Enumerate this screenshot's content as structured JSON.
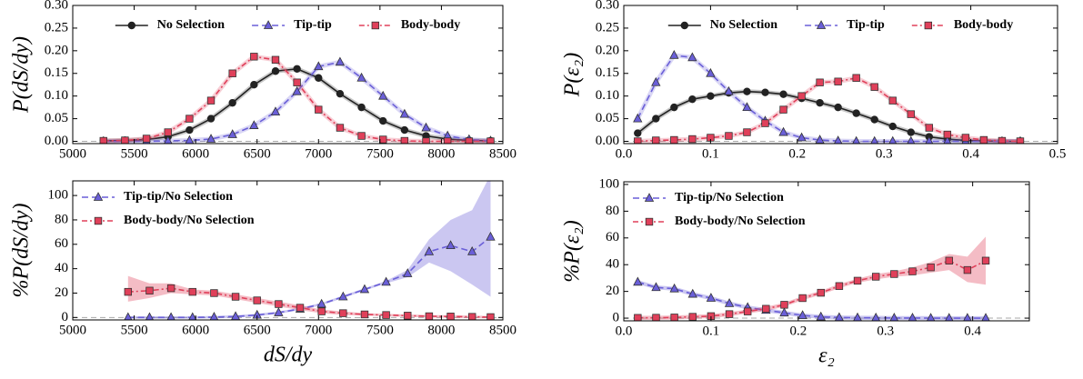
{
  "chart_data": [
    {
      "type": "line",
      "ylabel": "P(dS/dy)",
      "x": [
        5250,
        5425,
        5600,
        5775,
        5950,
        6125,
        6300,
        6475,
        6650,
        6825,
        7000,
        7175,
        7350,
        7525,
        7700,
        7875,
        8050,
        8225,
        8400
      ],
      "series": [
        {
          "name": "No Selection",
          "color": "#222222",
          "marker": "circle",
          "linestyle": "solid",
          "values": [
            0.001,
            0.002,
            0.004,
            0.01,
            0.025,
            0.05,
            0.085,
            0.125,
            0.155,
            0.16,
            0.14,
            0.105,
            0.075,
            0.045,
            0.025,
            0.012,
            0.005,
            0.002,
            0.001
          ]
        },
        {
          "name": "Tip-tip",
          "color": "#6a5fd8",
          "marker": "triangle",
          "linestyle": "dashed",
          "values": [
            0,
            0,
            0,
            0.001,
            0.002,
            0.005,
            0.015,
            0.035,
            0.065,
            0.11,
            0.165,
            0.175,
            0.14,
            0.1,
            0.06,
            0.03,
            0.012,
            0.004,
            0.001
          ]
        },
        {
          "name": "Body-body",
          "color": "#e0405a",
          "marker": "square",
          "linestyle": "dashdot",
          "values": [
            0.001,
            0.002,
            0.006,
            0.02,
            0.05,
            0.09,
            0.15,
            0.187,
            0.18,
            0.13,
            0.07,
            0.03,
            0.012,
            0.004,
            0.001,
            0,
            0,
            0,
            0
          ]
        }
      ],
      "xlim": [
        5000,
        8500
      ],
      "ylim": [
        -0.005,
        0.3
      ],
      "xticks": [
        5000,
        5500,
        6000,
        6500,
        7000,
        7500,
        8000,
        8500
      ],
      "yticks": [
        {
          "value": 0,
          "label": "0.00"
        },
        {
          "value": 0.05,
          "label": "0.05"
        },
        {
          "value": 0.1,
          "label": "0.10"
        },
        {
          "value": 0.15,
          "label": "0.15"
        },
        {
          "value": 0.2,
          "label": "0.20"
        },
        {
          "value": 0.25,
          "label": "0.25"
        },
        {
          "value": 0.3,
          "label": "0.30"
        }
      ],
      "hline": 0,
      "legend": "upper center"
    },
    {
      "type": "line",
      "ylabel": "%P(dS/dy)",
      "xlabel": "dS/dy",
      "x": [
        5450,
        5625,
        5800,
        5975,
        6150,
        6325,
        6500,
        6675,
        6850,
        7025,
        7200,
        7375,
        7550,
        7725,
        7900,
        8075,
        8250,
        8400
      ],
      "series": [
        {
          "name": "Tip-tip/No Selection",
          "color": "#6a5fd8",
          "marker": "triangle",
          "linestyle": "dashed",
          "values": [
            0,
            0,
            0,
            0,
            0.3,
            0.8,
            2,
            4,
            7,
            11,
            17,
            23,
            29,
            36,
            54,
            59,
            54,
            66
          ],
          "lower": [
            -1,
            -1,
            -1,
            -1,
            -0.7,
            -0.2,
            1,
            3,
            6,
            10,
            16,
            22,
            28,
            33,
            45,
            38,
            27,
            17
          ],
          "upper": [
            1,
            1,
            1,
            1,
            1.3,
            1.8,
            3,
            5,
            8,
            12,
            18,
            24,
            30,
            39,
            64,
            80,
            88,
            117
          ]
        },
        {
          "name": "Body-body/No Selection",
          "color": "#e0405a",
          "marker": "square",
          "linestyle": "dashdot",
          "values": [
            21,
            22,
            24,
            21,
            20,
            17,
            14,
            11,
            8,
            5,
            3.5,
            2.5,
            2,
            1.5,
            1,
            0.8,
            0.5,
            0.3
          ],
          "lower": [
            13,
            16,
            20,
            19,
            18,
            15,
            12,
            9,
            6,
            3.5,
            2,
            1.5,
            1,
            0.5,
            0,
            -0.2,
            -0.5,
            -0.7
          ],
          "upper": [
            34,
            28,
            28,
            23,
            22,
            19,
            16,
            13,
            10,
            6.5,
            5,
            3.5,
            3,
            2.5,
            2,
            1.8,
            1.5,
            1.3
          ]
        }
      ],
      "xlim": [
        5000,
        8500
      ],
      "ylim": [
        -2,
        112
      ],
      "xticks": [
        5000,
        5500,
        6000,
        6500,
        7000,
        7500,
        8000,
        8500
      ],
      "yticks": [
        0,
        20,
        40,
        60,
        80,
        100
      ],
      "hline": 0,
      "legend": "upper left"
    },
    {
      "type": "line",
      "ylabel": "P(ε₂)",
      "x": [
        0.016,
        0.037,
        0.058,
        0.079,
        0.1,
        0.121,
        0.142,
        0.163,
        0.184,
        0.205,
        0.226,
        0.247,
        0.268,
        0.289,
        0.31,
        0.331,
        0.352,
        0.373,
        0.394,
        0.415,
        0.436,
        0.457
      ],
      "series": [
        {
          "name": "No Selection",
          "color": "#222222",
          "marker": "circle",
          "linestyle": "solid",
          "values": [
            0.018,
            0.05,
            0.075,
            0.093,
            0.1,
            0.107,
            0.11,
            0.108,
            0.104,
            0.095,
            0.085,
            0.075,
            0.062,
            0.048,
            0.033,
            0.02,
            0.01,
            0.005,
            0.002,
            0.001,
            0,
            0
          ]
        },
        {
          "name": "Tip-tip",
          "color": "#6a5fd8",
          "marker": "triangle",
          "linestyle": "dashed",
          "values": [
            0.05,
            0.13,
            0.19,
            0.185,
            0.15,
            0.11,
            0.075,
            0.045,
            0.02,
            0.008,
            0.003,
            0.001,
            0,
            0,
            0,
            0,
            0,
            0,
            0,
            0,
            0,
            0
          ]
        },
        {
          "name": "Body-body",
          "color": "#e0405a",
          "marker": "square",
          "linestyle": "dashdot",
          "values": [
            0,
            0.002,
            0.003,
            0.005,
            0.008,
            0.012,
            0.02,
            0.04,
            0.07,
            0.1,
            0.13,
            0.132,
            0.14,
            0.12,
            0.09,
            0.06,
            0.03,
            0.015,
            0.008,
            0.003,
            0.001,
            0
          ]
        }
      ],
      "xlim": [
        0,
        0.5
      ],
      "ylim": [
        -0.005,
        0.3
      ],
      "xticks": [
        {
          "value": 0,
          "label": "0.0"
        },
        0.1,
        0.2,
        0.3,
        0.4,
        0.5
      ],
      "yticks": [
        {
          "value": 0,
          "label": "0.00"
        },
        {
          "value": 0.05,
          "label": "0.05"
        },
        {
          "value": 0.1,
          "label": "0.10"
        },
        {
          "value": 0.15,
          "label": "0.15"
        },
        {
          "value": 0.2,
          "label": "0.20"
        },
        {
          "value": 0.25,
          "label": "0.25"
        },
        {
          "value": 0.3,
          "label": "0.30"
        }
      ],
      "hline": 0,
      "legend": "upper center"
    },
    {
      "type": "line",
      "ylabel": "%P(ε₂)",
      "xlabel": "ε₂",
      "x": [
        0.016,
        0.037,
        0.058,
        0.079,
        0.1,
        0.121,
        0.142,
        0.163,
        0.184,
        0.205,
        0.226,
        0.247,
        0.268,
        0.289,
        0.31,
        0.331,
        0.352,
        0.373,
        0.394,
        0.415
      ],
      "series": [
        {
          "name": "Tip-tip/No Selection",
          "color": "#6a5fd8",
          "marker": "triangle",
          "linestyle": "dashed",
          "values": [
            27,
            23,
            22,
            18,
            15,
            11,
            8,
            6,
            4,
            2,
            1,
            0.5,
            0.3,
            0.2,
            0.1,
            0.1,
            0,
            0,
            0,
            0
          ],
          "lower": [
            25.5,
            21.5,
            20.5,
            16.5,
            13.5,
            9.5,
            6.5,
            4.5,
            2.5,
            0.5,
            -0.5,
            -1,
            -1.2,
            -1.3,
            -1.4,
            -1.4,
            -1.5,
            -1.5,
            -1.5,
            -1.5
          ],
          "upper": [
            28.5,
            24.5,
            23.5,
            19.5,
            16.5,
            12.5,
            9.5,
            7.5,
            5.5,
            3.5,
            2.5,
            2,
            1.8,
            1.7,
            1.6,
            1.6,
            1.5,
            1.5,
            1.5,
            1.5
          ]
        },
        {
          "name": "Body-body/No Selection",
          "color": "#e0405a",
          "marker": "square",
          "linestyle": "dashdot",
          "values": [
            0.2,
            0.3,
            0.5,
            1,
            1.5,
            3,
            5,
            7,
            10,
            15,
            19,
            24,
            28,
            31,
            33,
            35,
            38,
            43,
            36,
            43
          ],
          "lower": [
            -1.3,
            -1.2,
            -1,
            -0.5,
            0,
            1.5,
            3.5,
            5.5,
            8.5,
            13.5,
            17.5,
            22.5,
            26.5,
            29,
            31,
            32,
            34,
            36,
            27,
            25
          ],
          "upper": [
            1.7,
            1.8,
            2,
            2.5,
            3,
            4.5,
            6.5,
            8.5,
            11.5,
            16.5,
            20.5,
            25.5,
            29.5,
            33,
            35,
            38,
            42,
            48,
            46,
            61
          ]
        }
      ],
      "xlim": [
        0,
        0.465
      ],
      "ylim": [
        -2,
        102
      ],
      "xticks": [
        {
          "value": 0,
          "label": "0.0"
        },
        0.1,
        0.2,
        0.3,
        0.4
      ],
      "yticks": [
        0,
        20,
        40,
        60,
        80,
        100
      ],
      "hline": 0,
      "legend": "upper left"
    }
  ]
}
